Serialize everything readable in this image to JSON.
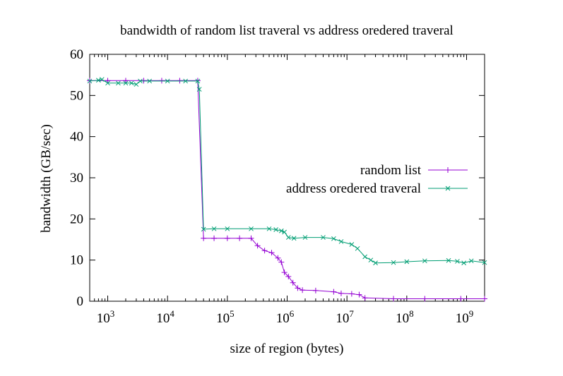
{
  "chart_data": {
    "type": "line",
    "title": "bandwidth of random list traveral vs address oredered traveral",
    "xlabel": "size of region (bytes)",
    "ylabel": "bandwidth (GB/sec)",
    "x_scale": "log",
    "xlim": [
      500,
      2000000000
    ],
    "ylim": [
      0,
      60
    ],
    "x_ticks": [
      1000,
      10000,
      100000,
      1000000,
      10000000,
      100000000,
      1000000000
    ],
    "x_tick_labels": [
      {
        "base": "10",
        "exp": "3"
      },
      {
        "base": "10",
        "exp": "4"
      },
      {
        "base": "10",
        "exp": "5"
      },
      {
        "base": "10",
        "exp": "6"
      },
      {
        "base": "10",
        "exp": "7"
      },
      {
        "base": "10",
        "exp": "8"
      },
      {
        "base": "10",
        "exp": "9"
      }
    ],
    "y_ticks": [
      0,
      10,
      20,
      30,
      40,
      50,
      60
    ],
    "y_tick_labels": [
      "0",
      "10",
      "20",
      "30",
      "40",
      "50",
      "60"
    ],
    "grid": false,
    "legend_position": "right",
    "series": [
      {
        "name": "random list",
        "color": "#9400d3",
        "marker": "plus",
        "points": [
          [
            500,
            53.6
          ],
          [
            1000,
            53.6
          ],
          [
            2000,
            53.6
          ],
          [
            4000,
            53.6
          ],
          [
            8000,
            53.6
          ],
          [
            16000,
            53.6
          ],
          [
            32000,
            53.6
          ],
          [
            40000,
            15.3
          ],
          [
            60000,
            15.3
          ],
          [
            100000,
            15.3
          ],
          [
            160000,
            15.3
          ],
          [
            250000,
            15.3
          ],
          [
            320000,
            13.5
          ],
          [
            420000,
            12.3
          ],
          [
            550000,
            11.8
          ],
          [
            700000,
            10.5
          ],
          [
            800000,
            9.5
          ],
          [
            900000,
            7.0
          ],
          [
            1050000,
            6.0
          ],
          [
            1250000,
            4.5
          ],
          [
            1500000,
            3.2
          ],
          [
            1800000,
            2.7
          ],
          [
            3000000,
            2.6
          ],
          [
            6000000,
            2.3
          ],
          [
            8000000,
            1.9
          ],
          [
            12000000,
            1.8
          ],
          [
            16000000,
            1.6
          ],
          [
            20000000,
            0.8
          ],
          [
            60000000,
            0.6
          ],
          [
            200000000,
            0.6
          ],
          [
            800000000,
            0.6
          ],
          [
            2000000000,
            0.6
          ]
        ]
      },
      {
        "name": "address oredered traveral",
        "color": "#009e73",
        "marker": "cross",
        "points": [
          [
            500,
            53.5
          ],
          [
            700,
            53.7
          ],
          [
            800,
            53.9
          ],
          [
            1000,
            53.0
          ],
          [
            1500,
            53.0
          ],
          [
            2000,
            53.0
          ],
          [
            2500,
            53.0
          ],
          [
            3000,
            52.7
          ],
          [
            3500,
            53.5
          ],
          [
            5000,
            53.5
          ],
          [
            10000,
            53.5
          ],
          [
            20000,
            53.5
          ],
          [
            32000,
            53.5
          ],
          [
            34000,
            51.5
          ],
          [
            40000,
            17.5
          ],
          [
            60000,
            17.6
          ],
          [
            100000,
            17.6
          ],
          [
            250000,
            17.6
          ],
          [
            500000,
            17.6
          ],
          [
            650000,
            17.4
          ],
          [
            800000,
            17.1
          ],
          [
            900000,
            16.8
          ],
          [
            1050000,
            15.5
          ],
          [
            1300000,
            15.3
          ],
          [
            2000000,
            15.5
          ],
          [
            4000000,
            15.5
          ],
          [
            6000000,
            15.2
          ],
          [
            8000000,
            14.5
          ],
          [
            12000000,
            13.8
          ],
          [
            15000000,
            12.8
          ],
          [
            20000000,
            10.8
          ],
          [
            25000000,
            10.0
          ],
          [
            30000000,
            9.3
          ],
          [
            60000000,
            9.4
          ],
          [
            100000000,
            9.6
          ],
          [
            200000000,
            9.8
          ],
          [
            500000000,
            9.9
          ],
          [
            700000000,
            9.7
          ],
          [
            900000000,
            9.3
          ],
          [
            1200000000,
            9.8
          ],
          [
            2000000000,
            9.4
          ]
        ]
      }
    ]
  }
}
